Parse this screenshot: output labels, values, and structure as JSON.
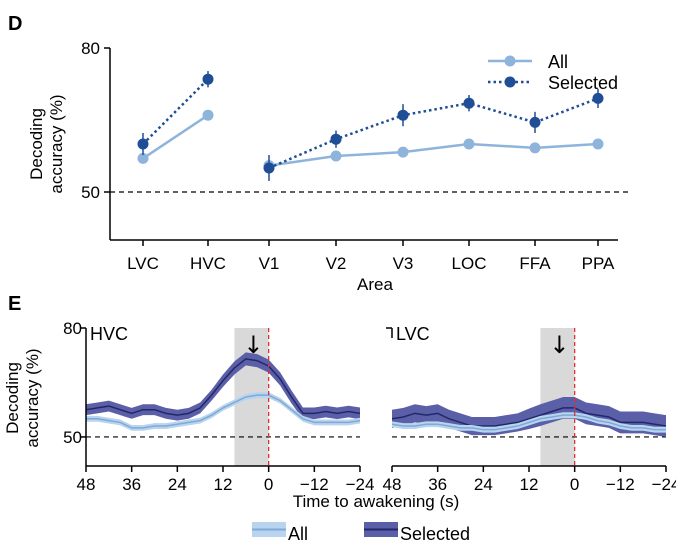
{
  "colors": {
    "all": "#8eb4dc",
    "selected": "#1f4e96",
    "selected_band": "#5a5fa8",
    "selected_line": "#23276a",
    "all_band": "#b8d4ef",
    "all_line": "#7fa9d6",
    "shade": "#d9d9d9",
    "awakening_line": "#e03030"
  },
  "chart_data": [
    {
      "panel": "D",
      "type": "line",
      "xlabel": "Area",
      "ylabel_line1": "Decoding",
      "ylabel_line2": "accuracy (%)",
      "ylim": [
        40,
        80
      ],
      "yticks": [
        "50",
        "80"
      ],
      "chance_level": 50,
      "categories": [
        "LVC",
        "HVC",
        "V1",
        "V2",
        "V3",
        "LOC",
        "FFA",
        "PPA"
      ],
      "segments": [
        [
          "LVC",
          "HVC"
        ],
        [
          "V1",
          "V2",
          "V3",
          "LOC",
          "FFA",
          "PPA"
        ]
      ],
      "series": [
        {
          "name": "All",
          "style": "solid",
          "values": [
            57,
            66,
            55.5,
            57.5,
            58.3,
            60,
            59.2,
            60
          ],
          "errors": [
            0.6,
            0.6,
            0.6,
            0.6,
            0.6,
            0.6,
            0.6,
            0.6
          ]
        },
        {
          "name": "Selected",
          "style": "dotted",
          "values": [
            60,
            73.5,
            55,
            61,
            66,
            68.5,
            64.5,
            69.5
          ],
          "errors": [
            2.3,
            1.7,
            2.7,
            1.8,
            2.3,
            1.7,
            2.2,
            2.0
          ]
        }
      ],
      "legend_position": "top-right"
    },
    {
      "panel": "E",
      "type": "area",
      "title": "HVC",
      "xlabel": "Time to awakening (s)",
      "ylabel_line1": "Decoding",
      "ylabel_line2": "accuracy (%)",
      "ylim": [
        42,
        80
      ],
      "yticks": [
        "50",
        "80"
      ],
      "xticks": [
        "48",
        "36",
        "24",
        "12",
        "0",
        "−12",
        "−24"
      ],
      "xlim": [
        48,
        -24
      ],
      "chance_level": 50,
      "shaded_window": [
        9,
        0
      ],
      "arrow_at": 4,
      "x": [
        48,
        45,
        42,
        39,
        36,
        33,
        30,
        27,
        24,
        21,
        18,
        15,
        12,
        9,
        6,
        3,
        0,
        -3,
        -6,
        -9,
        -12,
        -15,
        -18,
        -21,
        -24
      ],
      "series": [
        {
          "name": "Selected",
          "values": [
            57.5,
            58,
            58.5,
            57.5,
            56.5,
            57.5,
            57.5,
            56.5,
            56,
            56.5,
            58,
            61.5,
            65.5,
            69,
            71.5,
            71,
            69.5,
            66,
            61,
            56.5,
            56.5,
            57,
            56.5,
            57,
            56.5
          ],
          "errors": [
            1.5,
            1.5,
            1.5,
            1.5,
            1.5,
            1.5,
            1.5,
            1.5,
            1.5,
            1.5,
            1.5,
            1.5,
            1.7,
            1.8,
            1.8,
            1.8,
            1.8,
            1.8,
            1.8,
            1.6,
            1.6,
            1.6,
            1.6,
            1.6,
            1.6
          ]
        },
        {
          "name": "All",
          "values": [
            55,
            55,
            54.5,
            54,
            52.5,
            52.5,
            53,
            53,
            53.5,
            54,
            54.5,
            56,
            58,
            59.5,
            61,
            61.5,
            61.5,
            60,
            57.5,
            55,
            54,
            54,
            54,
            54,
            54.5
          ],
          "errors": [
            0.8,
            0.8,
            0.8,
            0.8,
            0.8,
            0.8,
            0.8,
            0.8,
            0.8,
            0.8,
            0.8,
            0.8,
            0.8,
            0.8,
            0.8,
            0.8,
            0.8,
            0.8,
            0.8,
            0.8,
            0.8,
            0.8,
            0.8,
            0.8,
            0.8
          ]
        }
      ]
    },
    {
      "panel": "E",
      "type": "area",
      "title": "LVC",
      "xlabel": "Time to awakening (s)",
      "ylim": [
        42,
        80
      ],
      "xticks": [
        "48",
        "36",
        "24",
        "12",
        "0",
        "−12",
        "−24"
      ],
      "xlim": [
        48,
        -24
      ],
      "chance_level": 50,
      "shaded_window": [
        9,
        0
      ],
      "arrow_at": 4,
      "x": [
        48,
        45,
        42,
        39,
        36,
        33,
        30,
        27,
        24,
        21,
        18,
        15,
        12,
        9,
        6,
        3,
        0,
        -3,
        -6,
        -9,
        -12,
        -15,
        -18,
        -21,
        -24
      ],
      "series": [
        {
          "name": "Selected",
          "values": [
            55,
            55.5,
            56.5,
            56,
            56.5,
            55,
            54,
            53,
            53,
            53,
            53.5,
            54,
            55,
            56,
            57,
            58,
            58,
            56.5,
            56,
            55.5,
            54,
            54,
            54,
            53.5,
            53
          ],
          "errors": [
            2.5,
            2.5,
            2.5,
            2.5,
            2.5,
            2.5,
            2.5,
            2.5,
            2.5,
            2.5,
            2.5,
            2.5,
            2.8,
            3,
            3,
            3,
            3,
            3,
            3,
            3,
            3,
            3,
            3,
            3,
            3
          ]
        },
        {
          "name": "All",
          "values": [
            53.5,
            53,
            53,
            53.5,
            53.5,
            53,
            52.5,
            52.5,
            52,
            52,
            52.5,
            53,
            54,
            55,
            55.5,
            56,
            56,
            55.5,
            54.5,
            54,
            53,
            52.5,
            52.5,
            52,
            52
          ],
          "errors": [
            0.8,
            0.8,
            0.8,
            0.8,
            0.8,
            0.8,
            0.8,
            0.8,
            0.8,
            0.8,
            0.8,
            0.8,
            0.8,
            0.8,
            0.8,
            0.8,
            0.8,
            0.8,
            0.8,
            0.8,
            0.8,
            0.8,
            0.8,
            0.8,
            0.8
          ]
        }
      ]
    }
  ],
  "labels": {
    "panel_d": "D",
    "panel_e": "E",
    "legend_d_all": "All",
    "legend_d_selected": "Selected",
    "legend_e_all": "All",
    "legend_e_selected": "Selected",
    "arrow_glyph": "↓"
  }
}
